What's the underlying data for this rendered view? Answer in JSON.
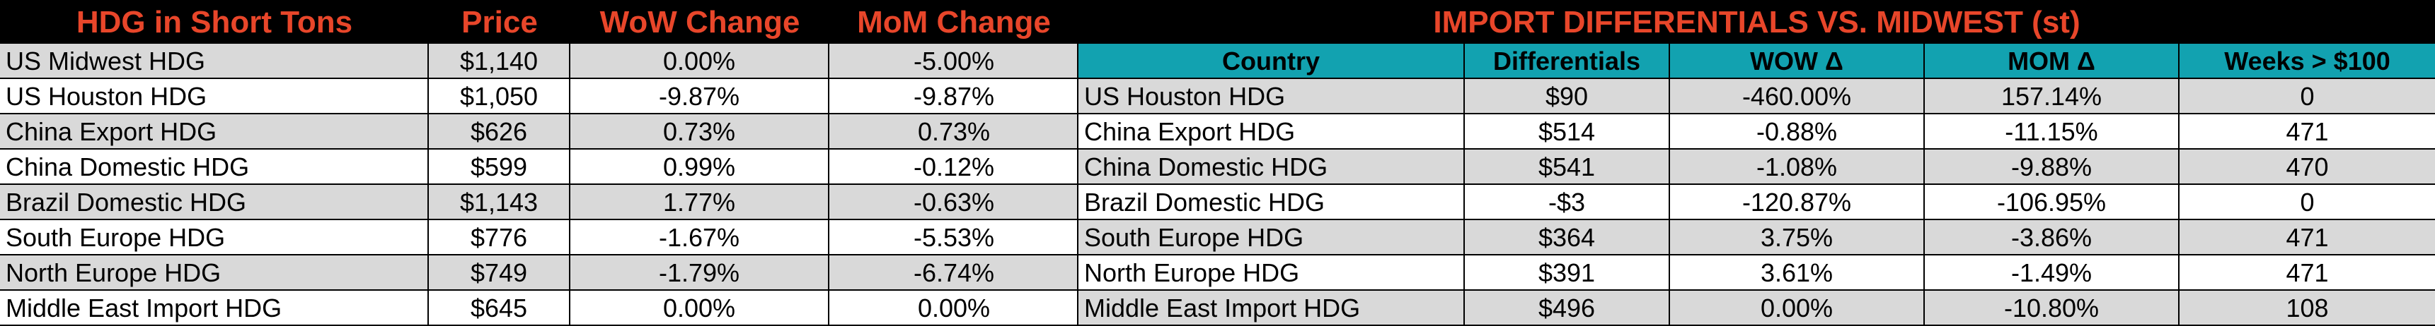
{
  "left_table": {
    "headers": [
      "HDG in Short Tons",
      "Price",
      "WoW Change",
      "MoM Change"
    ],
    "rows": [
      [
        "US Midwest HDG",
        "$1,140",
        "0.00%",
        "-5.00%"
      ],
      [
        "US Houston HDG",
        "$1,050",
        "-9.87%",
        "-9.87%"
      ],
      [
        "China Export HDG",
        "$626",
        "0.73%",
        "0.73%"
      ],
      [
        "China Domestic HDG",
        "$599",
        "0.99%",
        "-0.12%"
      ],
      [
        "Brazil Domestic HDG",
        "$1,143",
        "1.77%",
        "-0.63%"
      ],
      [
        "South Europe HDG",
        "$776",
        "-1.67%",
        "-5.53%"
      ],
      [
        "North Europe HDG",
        "$749",
        "-1.79%",
        "-6.74%"
      ],
      [
        "Middle East Import HDG",
        "$645",
        "0.00%",
        "0.00%"
      ]
    ]
  },
  "right_table": {
    "title": "IMPORT DIFFERENTIALS VS. MIDWEST (st)",
    "headers": [
      "Country",
      "Differentials",
      "WOW Δ",
      "MOM Δ",
      "Weeks > $100"
    ],
    "rows": [
      [
        "US Houston HDG",
        "$90",
        "-460.00%",
        "157.14%",
        "0"
      ],
      [
        "China Export HDG",
        "$514",
        "-0.88%",
        "-11.15%",
        "471"
      ],
      [
        "China Domestic HDG",
        "$541",
        "-1.08%",
        "-9.88%",
        "470"
      ],
      [
        "Brazil Domestic HDG",
        "-$3",
        "-120.87%",
        "-106.95%",
        "0"
      ],
      [
        "South Europe HDG",
        "$364",
        "3.75%",
        "-3.86%",
        "471"
      ],
      [
        "North Europe HDG",
        "$391",
        "3.61%",
        "-1.49%",
        "471"
      ],
      [
        "Middle East Import HDG",
        "$496",
        "0.00%",
        "-10.80%",
        "108"
      ]
    ]
  },
  "colors": {
    "title_background": "#000000",
    "title_text": "#e8462a",
    "header_fill": "#12a2b0",
    "shaded_row": "#d9d9d9",
    "plain_row": "#ffffff"
  }
}
